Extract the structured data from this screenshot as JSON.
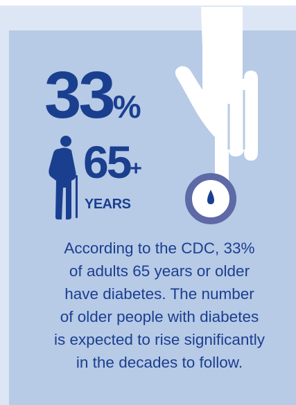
{
  "stat": {
    "value": "33",
    "unit": "%"
  },
  "age": {
    "value": "65",
    "suffix": "+",
    "label": "YEARS"
  },
  "description": "According to the CDC, 33%\nof adults 65 years or older\nhave diabetes. The number\nof older people with diabetes\nis expected to rise significantly\nin the decades to follow.",
  "colors": {
    "background": "#dde6f4",
    "card": "#b7cae6",
    "accent": "#1a3f8f",
    "ring": "#5d6aa6",
    "hand": "#ffffff"
  },
  "icons": [
    "elderly-person-icon",
    "hand-icon",
    "blood-drop-icon"
  ]
}
